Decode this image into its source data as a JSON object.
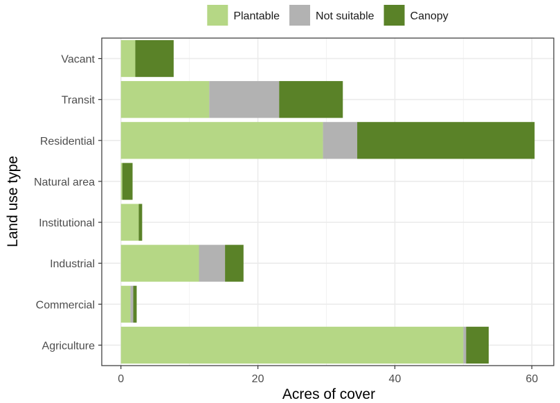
{
  "chart_data": {
    "type": "bar",
    "orientation": "horizontal",
    "stacked": true,
    "categories": [
      "Agriculture",
      "Commercial",
      "Industrial",
      "Institutional",
      "Natural area",
      "Residential",
      "Transit",
      "Vacant"
    ],
    "series": [
      {
        "name": "Plantable",
        "color": "#b5d785",
        "values": [
          50.0,
          1.4,
          11.4,
          2.6,
          0.2,
          29.5,
          12.9,
          2.1
        ]
      },
      {
        "name": "Not suitable",
        "color": "#b2b2b2",
        "values": [
          0.4,
          0.4,
          3.8,
          0.0,
          0.0,
          5.0,
          10.2,
          0.0
        ]
      },
      {
        "name": "Canopy",
        "color": "#5a8228",
        "values": [
          3.3,
          0.5,
          2.7,
          0.5,
          1.5,
          25.9,
          9.3,
          5.6
        ]
      }
    ],
    "xlabel": "Acres of cover",
    "ylabel": "Land use type",
    "xlim": [
      -2.8,
      63.2
    ],
    "xticks": [
      0,
      20,
      40,
      60
    ],
    "grid": true,
    "legend_position": "top"
  }
}
